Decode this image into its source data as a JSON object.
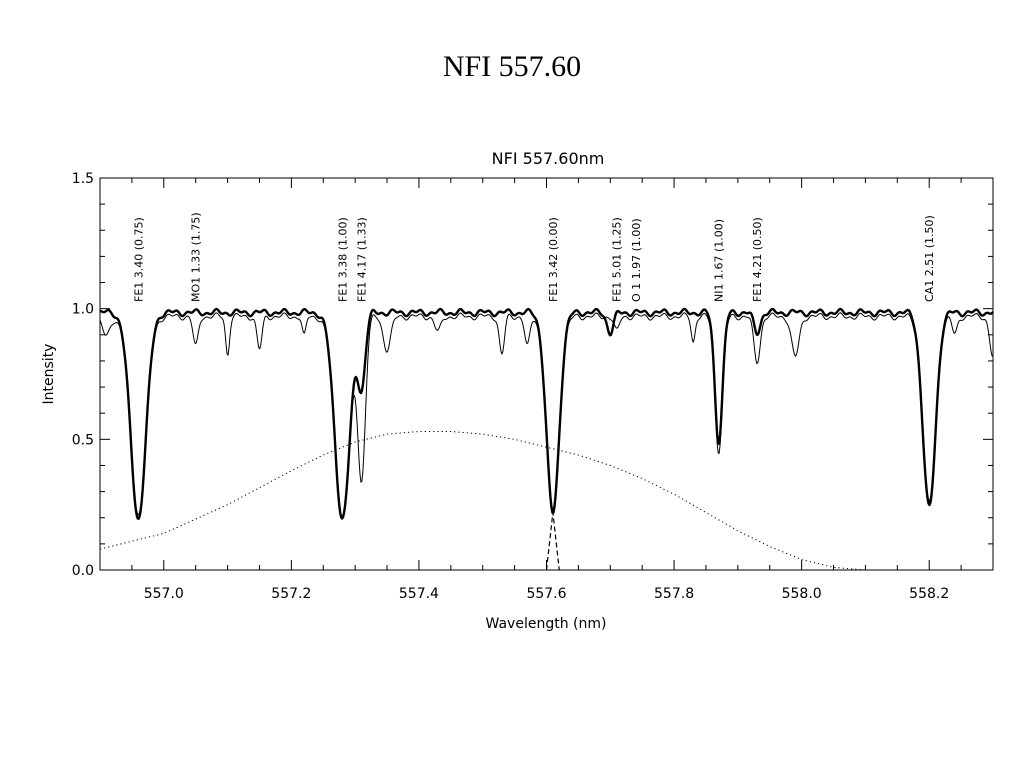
{
  "page_title": "NFI   557.60",
  "chart_data": {
    "type": "line",
    "title": "NFI 557.60nm",
    "xlabel": "Wavelength (nm)",
    "ylabel": "Intensity",
    "xlim": [
      556.9,
      558.3
    ],
    "ylim": [
      0.0,
      1.5
    ],
    "xticks": [
      557.0,
      557.2,
      557.4,
      557.6,
      557.8,
      558.0,
      558.2
    ],
    "xtick_labels": [
      "557.0",
      "557.2",
      "557.4",
      "557.6",
      "557.8",
      "558.0",
      "558.2"
    ],
    "yticks": [
      0.0,
      0.5,
      1.0,
      1.5
    ],
    "ytick_labels": [
      "0.0",
      "0.5",
      "1.0",
      "1.5"
    ],
    "grid": false,
    "line_annotations": [
      {
        "wavelength": 556.96,
        "label": "FE1 3.40 (0.75)"
      },
      {
        "wavelength": 557.05,
        "label": "MO1 1.33 (1.75)"
      },
      {
        "wavelength": 557.28,
        "label": "FE1 3.38 (1.00)"
      },
      {
        "wavelength": 557.31,
        "label": "FE1 4.17 (1.33)"
      },
      {
        "wavelength": 557.61,
        "label": "FE1 3.42 (0.00)"
      },
      {
        "wavelength": 557.71,
        "label": "FE1 5.01 (1.25)"
      },
      {
        "wavelength": 557.74,
        "label": "O 1 1.97 (1.00)"
      },
      {
        "wavelength": 557.87,
        "label": "NI1 1.67 (1.00)"
      },
      {
        "wavelength": 557.93,
        "label": "FE1 4.21 (0.50)"
      },
      {
        "wavelength": 558.2,
        "label": "CA1 2.51 (1.50)"
      }
    ],
    "series": [
      {
        "style": "thick",
        "continuum": 0.985,
        "lines": [
          {
            "center": 556.96,
            "depth": 0.8,
            "width": 0.012
          },
          {
            "center": 557.28,
            "depth": 0.8,
            "width": 0.012
          },
          {
            "center": 557.31,
            "depth": 0.28,
            "width": 0.006
          },
          {
            "center": 557.61,
            "depth": 0.78,
            "width": 0.01
          },
          {
            "center": 557.7,
            "depth": 0.08,
            "width": 0.005
          },
          {
            "center": 557.87,
            "depth": 0.5,
            "width": 0.006
          },
          {
            "center": 557.93,
            "depth": 0.08,
            "width": 0.005
          },
          {
            "center": 558.2,
            "depth": 0.76,
            "width": 0.01
          }
        ]
      },
      {
        "style": "thin",
        "continuum": 0.97,
        "lines": [
          {
            "center": 556.96,
            "depth": 0.78,
            "width": 0.012
          },
          {
            "center": 556.91,
            "depth": 0.08,
            "width": 0.006
          },
          {
            "center": 557.05,
            "depth": 0.12,
            "width": 0.004
          },
          {
            "center": 557.1,
            "depth": 0.15,
            "width": 0.003
          },
          {
            "center": 557.15,
            "depth": 0.13,
            "width": 0.004
          },
          {
            "center": 557.22,
            "depth": 0.08,
            "width": 0.003
          },
          {
            "center": 557.28,
            "depth": 0.79,
            "width": 0.012
          },
          {
            "center": 557.31,
            "depth": 0.64,
            "width": 0.006
          },
          {
            "center": 557.35,
            "depth": 0.13,
            "width": 0.006
          },
          {
            "center": 557.43,
            "depth": 0.06,
            "width": 0.005
          },
          {
            "center": 557.53,
            "depth": 0.15,
            "width": 0.004
          },
          {
            "center": 557.57,
            "depth": 0.12,
            "width": 0.004
          },
          {
            "center": 557.61,
            "depth": 0.76,
            "width": 0.01
          },
          {
            "center": 557.71,
            "depth": 0.06,
            "width": 0.004
          },
          {
            "center": 557.83,
            "depth": 0.1,
            "width": 0.003
          },
          {
            "center": 557.87,
            "depth": 0.53,
            "width": 0.006
          },
          {
            "center": 557.93,
            "depth": 0.18,
            "width": 0.005
          },
          {
            "center": 557.99,
            "depth": 0.16,
            "width": 0.006
          },
          {
            "center": 558.2,
            "depth": 0.74,
            "width": 0.01
          },
          {
            "center": 558.24,
            "depth": 0.07,
            "width": 0.004
          },
          {
            "center": 558.3,
            "depth": 0.16,
            "width": 0.005
          }
        ]
      },
      {
        "style": "dotted",
        "type": "filter_profile",
        "x": [
          556.9,
          557.0,
          557.1,
          557.2,
          557.25,
          557.3,
          557.35,
          557.4,
          557.45,
          557.5,
          557.55,
          557.6,
          557.65,
          557.7,
          557.75,
          557.8,
          557.85,
          557.9,
          557.95,
          558.0,
          558.05,
          558.1,
          558.2,
          558.3
        ],
        "y": [
          0.08,
          0.14,
          0.25,
          0.38,
          0.44,
          0.49,
          0.52,
          0.53,
          0.53,
          0.52,
          0.5,
          0.47,
          0.44,
          0.4,
          0.35,
          0.29,
          0.22,
          0.15,
          0.09,
          0.04,
          0.01,
          0.0,
          0.0,
          0.0
        ]
      },
      {
        "style": "dashed",
        "type": "line_marker",
        "x": [
          557.6,
          557.61,
          557.61,
          557.62
        ],
        "y": [
          0.0,
          0.22,
          0.22,
          0.0
        ]
      }
    ]
  }
}
